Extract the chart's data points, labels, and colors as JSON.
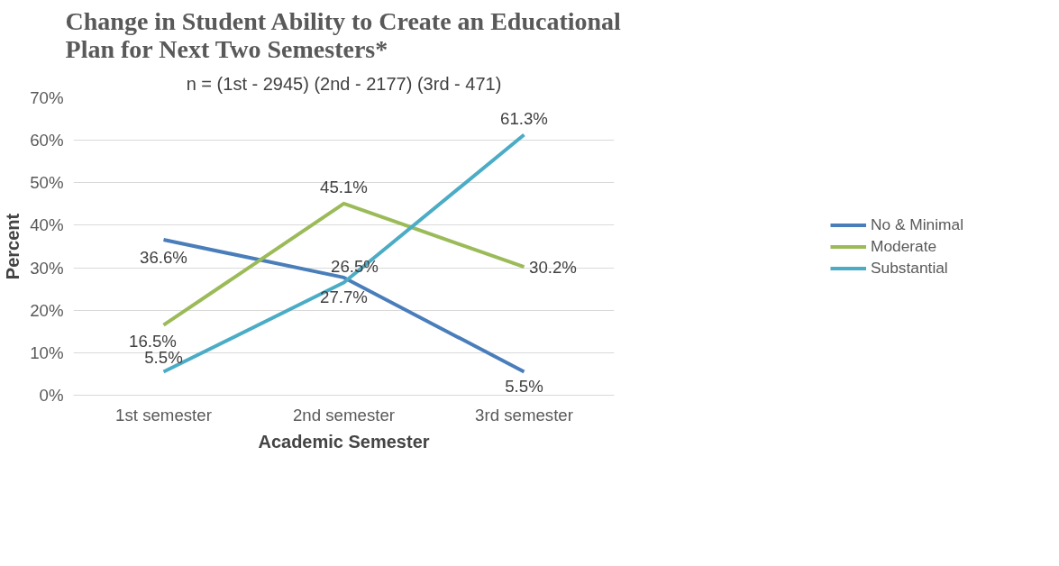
{
  "chart_data": {
    "type": "line",
    "title": "Change in Student Ability to Create an Educational Plan for Next Two Semesters*",
    "subtitle": "n = (1st - 2945) (2nd - 2177) (3rd - 471)",
    "xlabel": "Academic Semester",
    "ylabel": "Percent",
    "categories": [
      "1st semester",
      "2nd semester",
      "3rd semester"
    ],
    "series": [
      {
        "name": "No & Minimal",
        "color": "#4a7ebb",
        "values": [
          36.6,
          27.7,
          5.5
        ],
        "value_labels": [
          "36.6%",
          "27.7%",
          "5.5%"
        ]
      },
      {
        "name": "Moderate",
        "color": "#9bbb59",
        "values": [
          16.5,
          45.1,
          30.2
        ],
        "value_labels": [
          "16.5%",
          "45.1%",
          "30.2%"
        ]
      },
      {
        "name": "Substantial",
        "color": "#4bacc6",
        "values": [
          5.5,
          26.5,
          61.3
        ],
        "value_labels": [
          "5.5%",
          "26.5%",
          "61.3%"
        ]
      }
    ],
    "ylim": [
      0,
      70
    ],
    "yticks": [
      {
        "value": 0,
        "label": "0%"
      },
      {
        "value": 10,
        "label": "10%"
      },
      {
        "value": 20,
        "label": "20%"
      },
      {
        "value": 30,
        "label": "30%"
      },
      {
        "value": 40,
        "label": "40%"
      },
      {
        "value": 50,
        "label": "50%"
      },
      {
        "value": 60,
        "label": "60%"
      },
      {
        "value": 70,
        "label": "70%"
      }
    ],
    "grid": "y",
    "legend": "right",
    "marker": "none",
    "line_style": "solid"
  }
}
